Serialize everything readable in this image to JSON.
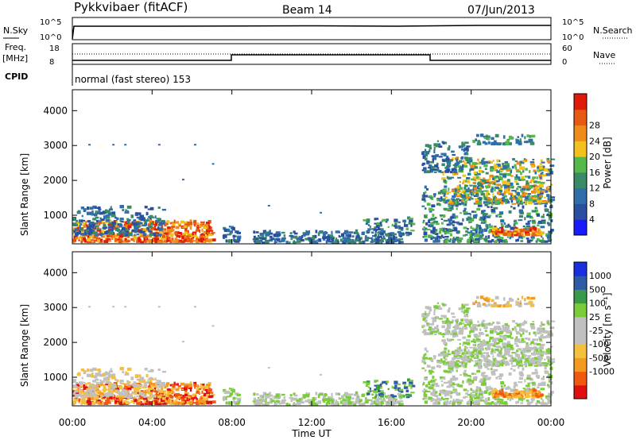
{
  "header": {
    "station": "Pykkvibaer (fitACF)",
    "beam": "Beam 14",
    "date": "07/Jun/2013"
  },
  "noise_panel": {
    "left_label": "N.Sky",
    "left_ticks": [
      "10^5",
      "10^0"
    ],
    "right_ticks": [
      "10^5",
      "10^0"
    ],
    "right_label": "N.Search"
  },
  "freq_panel": {
    "left_label_1": "Freq.",
    "left_label_2": "[MHz]",
    "left_ticks": [
      "18",
      "8"
    ],
    "right_ticks": [
      "60",
      "0"
    ],
    "right_label": "Nave",
    "cpid_label": "CPID",
    "mode_text": "normal (fast stereo) 153"
  },
  "colors": {
    "power_scale": [
      "#1a1aff",
      "#2b4fa0",
      "#2f6ea8",
      "#3a8a6a",
      "#55b84a",
      "#f2c21c",
      "#f08a1a",
      "#e85a14",
      "#e01a0a"
    ],
    "velocity_scale": [
      "#e01010",
      "#f05a10",
      "#f59a20",
      "#f5c040",
      "#c0c0c0",
      "#c0c0c0",
      "#7acc3a",
      "#3a9a4a",
      "#2f5aa8",
      "#1a2fe0"
    ]
  },
  "chart_data": [
    {
      "type": "heatmap",
      "title": "",
      "xlabel": "",
      "ylabel": "Slant Range [km]",
      "xlim": [
        0,
        24
      ],
      "ylim": [
        180,
        4600
      ],
      "y_ticks": [
        "1000",
        "2000",
        "3000",
        "4000"
      ],
      "colorbar_label": "Power [dB]",
      "colorbar_ticks": [
        "4",
        "8",
        "12",
        "16",
        "20",
        "24",
        "28"
      ],
      "grid": false
    },
    {
      "type": "heatmap",
      "title": "",
      "xlabel": "Time UT",
      "ylabel": "Slant Range [km]",
      "xlim": [
        0,
        24
      ],
      "ylim": [
        180,
        4600
      ],
      "x_ticks": [
        "00:00",
        "04:00",
        "08:00",
        "12:00",
        "16:00",
        "20:00",
        "00:00"
      ],
      "y_ticks": [
        "1000",
        "2000",
        "3000",
        "4000"
      ],
      "colorbar_label": "Velocity [m s⁻¹]",
      "colorbar_ticks": [
        "1000",
        "500",
        "100",
        "25",
        "-25",
        "-100",
        "-500",
        "-1000"
      ],
      "grid": false
    }
  ]
}
